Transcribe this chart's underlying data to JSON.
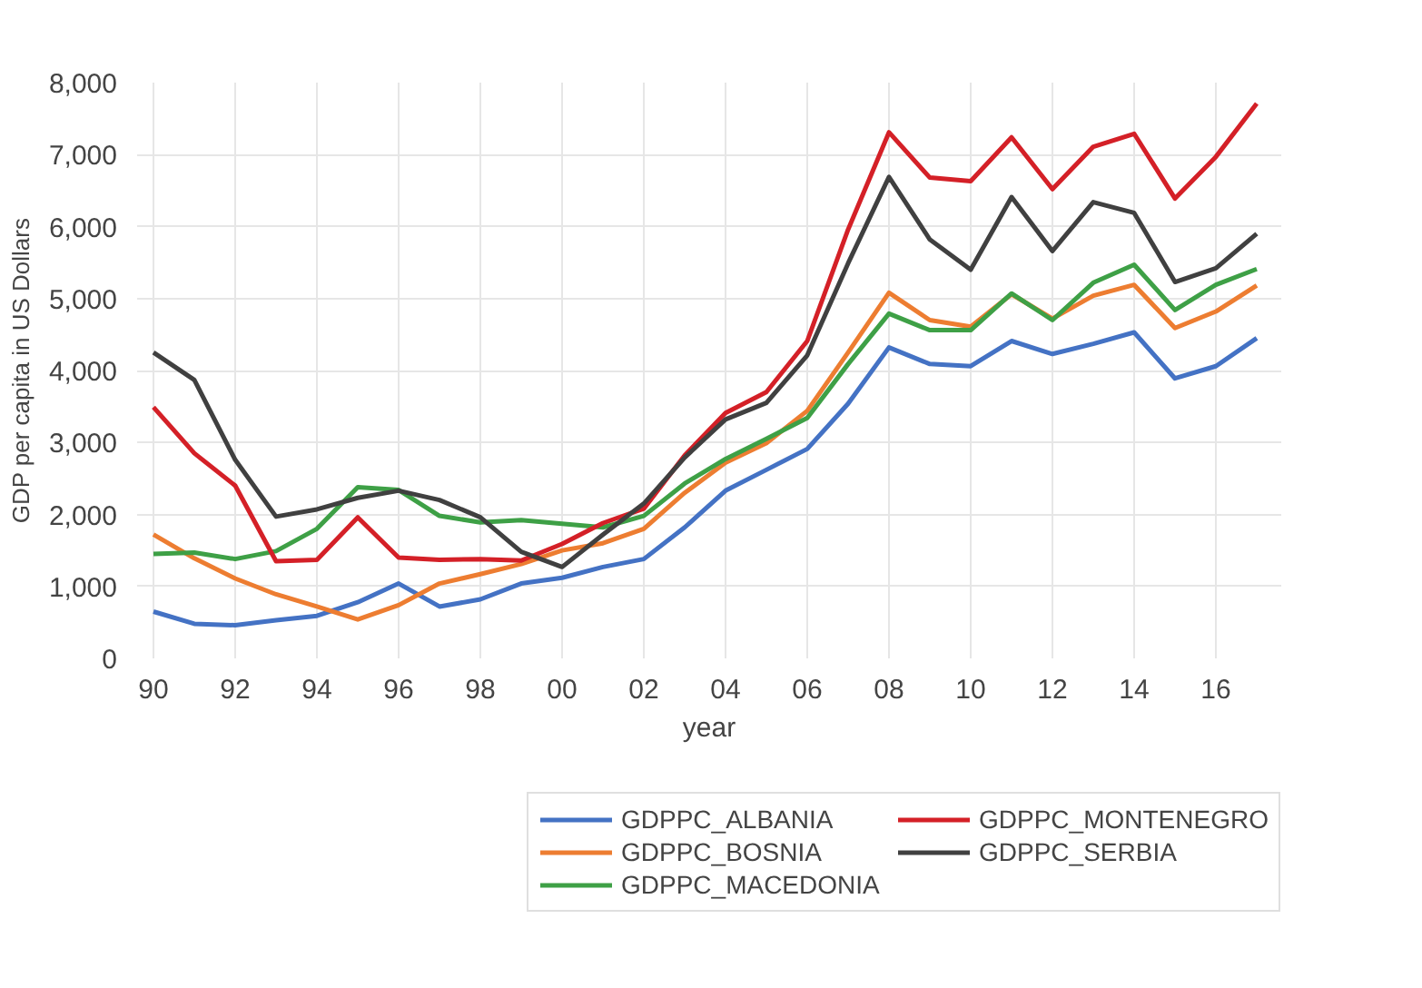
{
  "chart_data": {
    "type": "line",
    "xlabel": "year",
    "ylabel": "GDP per capita in US Dollars",
    "x": [
      1990,
      1991,
      1992,
      1993,
      1994,
      1995,
      1996,
      1997,
      1998,
      1999,
      2000,
      2001,
      2002,
      2003,
      2004,
      2005,
      2006,
      2007,
      2008,
      2009,
      2010,
      2011,
      2012,
      2013,
      2014,
      2015,
      2016,
      2017
    ],
    "series": [
      {
        "name": "GDPPC_ALBANIA",
        "color": "#4472c4",
        "values": [
          650,
          480,
          460,
          530,
          590,
          780,
          1040,
          720,
          820,
          1040,
          1120,
          1270,
          1380,
          1820,
          2330,
          2620,
          2910,
          3540,
          4320,
          4090,
          4060,
          4410,
          4230,
          4370,
          4530,
          3890,
          4060,
          4450
        ]
      },
      {
        "name": "GDPPC_BOSNIA",
        "color": "#ed7d31",
        "values": [
          1720,
          1390,
          1110,
          890,
          720,
          540,
          740,
          1040,
          1170,
          1310,
          1500,
          1600,
          1800,
          2300,
          2720,
          2990,
          3440,
          4250,
          5080,
          4700,
          4610,
          5060,
          4720,
          5040,
          5190,
          4590,
          4820,
          5180
        ]
      },
      {
        "name": "GDPPC_MACEDONIA",
        "color": "#3ea046",
        "values": [
          1450,
          1470,
          1380,
          1490,
          1800,
          2380,
          2340,
          1980,
          1890,
          1920,
          1870,
          1820,
          1980,
          2430,
          2770,
          3050,
          3340,
          4090,
          4790,
          4560,
          4560,
          5070,
          4700,
          5220,
          5470,
          4840,
          5190,
          5410
        ]
      },
      {
        "name": "GDPPC_MONTENEGRO",
        "color": "#d42027",
        "values": [
          3490,
          2850,
          2400,
          1350,
          1370,
          1960,
          1400,
          1370,
          1380,
          1360,
          1590,
          1880,
          2080,
          2820,
          3410,
          3700,
          4410,
          5960,
          7310,
          6680,
          6630,
          7240,
          6520,
          7110,
          7290,
          6390,
          6970,
          7710
        ]
      },
      {
        "name": "GDPPC_SERBIA",
        "color": "#404040",
        "values": [
          4250,
          3870,
          2760,
          1970,
          2070,
          2230,
          2330,
          2200,
          1960,
          1480,
          1270,
          1720,
          2150,
          2790,
          3320,
          3550,
          4210,
          5490,
          6690,
          5820,
          5400,
          6410,
          5660,
          6340,
          6190,
          5230,
          5420,
          5900
        ]
      }
    ],
    "xlim": [
      1989.6,
      2017.6
    ],
    "xticks": [
      {
        "value": 1990,
        "label": "90"
      },
      {
        "value": 1992,
        "label": "92"
      },
      {
        "value": 1994,
        "label": "94"
      },
      {
        "value": 1996,
        "label": "96"
      },
      {
        "value": 1998,
        "label": "98"
      },
      {
        "value": 2000,
        "label": "00"
      },
      {
        "value": 2002,
        "label": "02"
      },
      {
        "value": 2004,
        "label": "04"
      },
      {
        "value": 2006,
        "label": "06"
      },
      {
        "value": 2008,
        "label": "08"
      },
      {
        "value": 2010,
        "label": "10"
      },
      {
        "value": 2012,
        "label": "12"
      },
      {
        "value": 2014,
        "label": "14"
      },
      {
        "value": 2016,
        "label": "16"
      }
    ],
    "ylim": [
      0,
      8000
    ],
    "yticks": [
      {
        "value": 0,
        "label": "0"
      },
      {
        "value": 1000,
        "label": "1,000"
      },
      {
        "value": 2000,
        "label": "2,000"
      },
      {
        "value": 3000,
        "label": "3,000"
      },
      {
        "value": 4000,
        "label": "4,000"
      },
      {
        "value": 5000,
        "label": "5,000"
      },
      {
        "value": 6000,
        "label": "6,000"
      },
      {
        "value": 7000,
        "label": "7,000"
      },
      {
        "value": 8000,
        "label": "8,000"
      }
    ],
    "grid": true,
    "legend": "bottom",
    "marker": "none",
    "line_style": "solid"
  }
}
